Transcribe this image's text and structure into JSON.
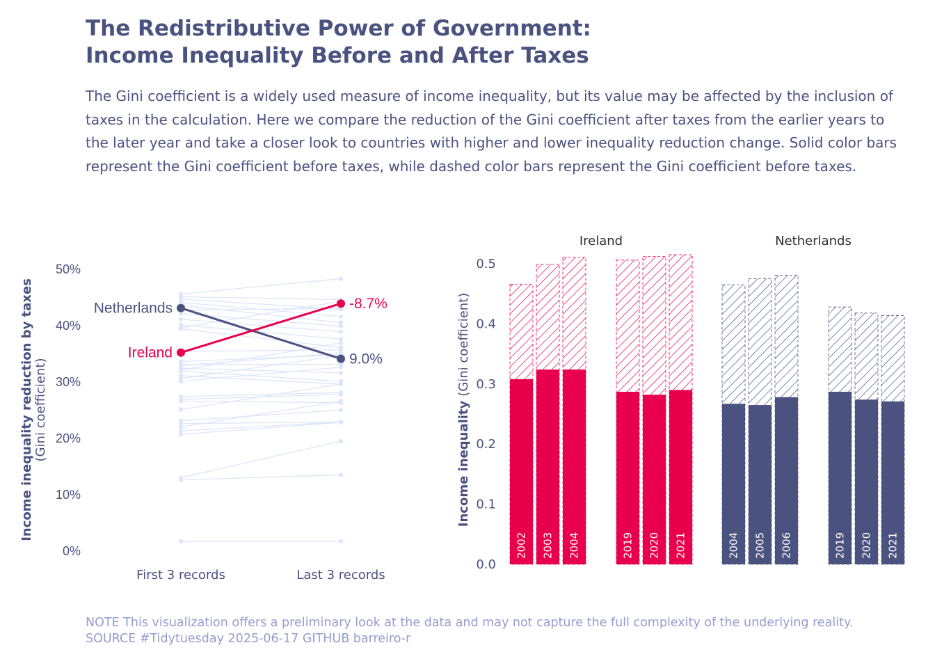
{
  "header": {
    "title_line1": "The Redistributive Power of Government:",
    "title_line2": "Income Inequality Before and After Taxes",
    "subtitle": "The Gini coefficient is a widely used measure of income inequality, but its value may be affected by the inclusion of taxes in the calculation. Here we compare the reduction of the Gini coefficient after taxes from the earlier years to the later year and take a closer look to countries with higher and lower inequality reduction change. Solid color bars represent the Gini coefficient before taxes, while dashed color bars represent the Gini coefficient before taxes."
  },
  "caption": "NOTE This visualization offers a preliminary look at the data and may not capture the full complexity of the underlying reality. SOURCE #Tidytuesday 2025-06-17 GITHUB barreiro-r",
  "colors": {
    "ireland": "#e8004c",
    "netherlands": "#4a5280",
    "background_lines": "#dde6f8",
    "text": "#4a5280",
    "caption": "#959cd0"
  },
  "chart_data": [
    {
      "type": "line",
      "ylabel_bold": "Income inequality reduction by taxes",
      "ylabel_sub": "(Gini coefficient)",
      "categories": [
        "First 3 records",
        "Last 3 records"
      ],
      "ylim": [
        0,
        50
      ],
      "yticks": [
        "0%",
        "10%",
        "20%",
        "30%",
        "40%",
        "50%"
      ],
      "grid": false,
      "highlight": [
        {
          "name": "Netherlands",
          "values": [
            43.0,
            34.0
          ],
          "change_label": "9.0%",
          "color": "#4a5280"
        },
        {
          "name": "Ireland",
          "values": [
            35.1,
            43.8
          ],
          "change_label": "-8.7%",
          "color": "#e8004c"
        }
      ],
      "background_series": [
        [
          45.5,
          48.2
        ],
        [
          45.0,
          44.5
        ],
        [
          44.6,
          42.8
        ],
        [
          44.0,
          41.5
        ],
        [
          43.5,
          40.4
        ],
        [
          42.6,
          43.0
        ],
        [
          42.0,
          39.8
        ],
        [
          41.0,
          38.8
        ],
        [
          40.0,
          37.5
        ],
        [
          39.5,
          44.2
        ],
        [
          39.3,
          36.0
        ],
        [
          35.3,
          35.6
        ],
        [
          33.5,
          34.7
        ],
        [
          33.0,
          33.0
        ],
        [
          32.8,
          35.0
        ],
        [
          32.3,
          31.5
        ],
        [
          32.0,
          36.8
        ],
        [
          31.8,
          30.0
        ],
        [
          31.0,
          29.5
        ],
        [
          30.5,
          34.6
        ],
        [
          30.0,
          32.5
        ],
        [
          27.3,
          28.0
        ],
        [
          26.8,
          27.7
        ],
        [
          26.5,
          26.2
        ],
        [
          25.0,
          29.5
        ],
        [
          23.0,
          24.9
        ],
        [
          22.5,
          22.8
        ],
        [
          21.9,
          26.5
        ],
        [
          21.2,
          22.8
        ],
        [
          20.6,
          22.7
        ],
        [
          12.9,
          19.4
        ],
        [
          12.5,
          13.4
        ],
        [
          1.6,
          1.6
        ]
      ]
    },
    {
      "type": "bar",
      "ylabel_bold": "Income inequality",
      "ylabel_sub": "(Gini coefficient)",
      "ylim": [
        0,
        0.52
      ],
      "yticks": [
        "0.0",
        "0.1",
        "0.2",
        "0.3",
        "0.4",
        "0.5"
      ],
      "facets": [
        {
          "name": "Ireland",
          "color": "#e8004c",
          "groups": [
            {
              "years": [
                "2002",
                "2003",
                "2004"
              ],
              "after_taxes": [
                0.308,
                0.324,
                0.324
              ],
              "before_taxes": [
                0.466,
                0.499,
                0.511
              ]
            },
            {
              "years": [
                "2019",
                "2020",
                "2021"
              ],
              "after_taxes": [
                0.287,
                0.282,
                0.29
              ],
              "before_taxes": [
                0.506,
                0.512,
                0.515
              ]
            }
          ]
        },
        {
          "name": "Netherlands",
          "color": "#4a5280",
          "groups": [
            {
              "years": [
                "2004",
                "2005",
                "2006"
              ],
              "after_taxes": [
                0.267,
                0.265,
                0.278
              ],
              "before_taxes": [
                0.465,
                0.475,
                0.481
              ]
            },
            {
              "years": [
                "2019",
                "2020",
                "2021"
              ],
              "after_taxes": [
                0.287,
                0.274,
                0.271
              ],
              "before_taxes": [
                0.428,
                0.418,
                0.414
              ]
            }
          ]
        }
      ]
    }
  ]
}
